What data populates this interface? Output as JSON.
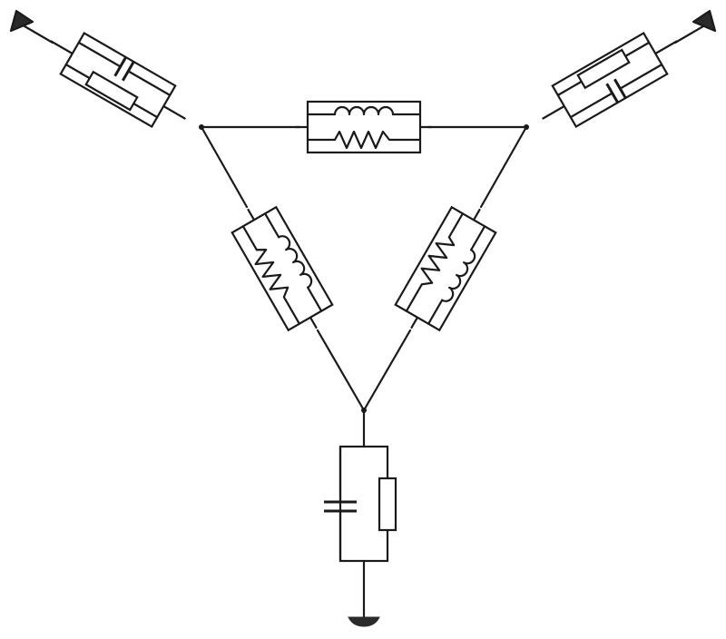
{
  "diagram": {
    "components": [
      {
        "name": "top-left-rc-network",
        "kind": "parallel-resistor-capacitor"
      },
      {
        "name": "top-right-rc-network",
        "kind": "parallel-resistor-capacitor"
      },
      {
        "name": "bottom-rc-network",
        "kind": "parallel-resistor-capacitor"
      },
      {
        "name": "top-rl-branch",
        "kind": "resistor-inductor-parallel"
      },
      {
        "name": "left-rl-branch",
        "kind": "resistor-inductor-parallel"
      },
      {
        "name": "right-rl-branch",
        "kind": "resistor-inductor-parallel"
      }
    ],
    "terminals": [
      "top-left-antenna",
      "top-right-antenna",
      "ground"
    ],
    "colors": {
      "line": "#1a1a1a",
      "background": "#ffffff"
    }
  }
}
